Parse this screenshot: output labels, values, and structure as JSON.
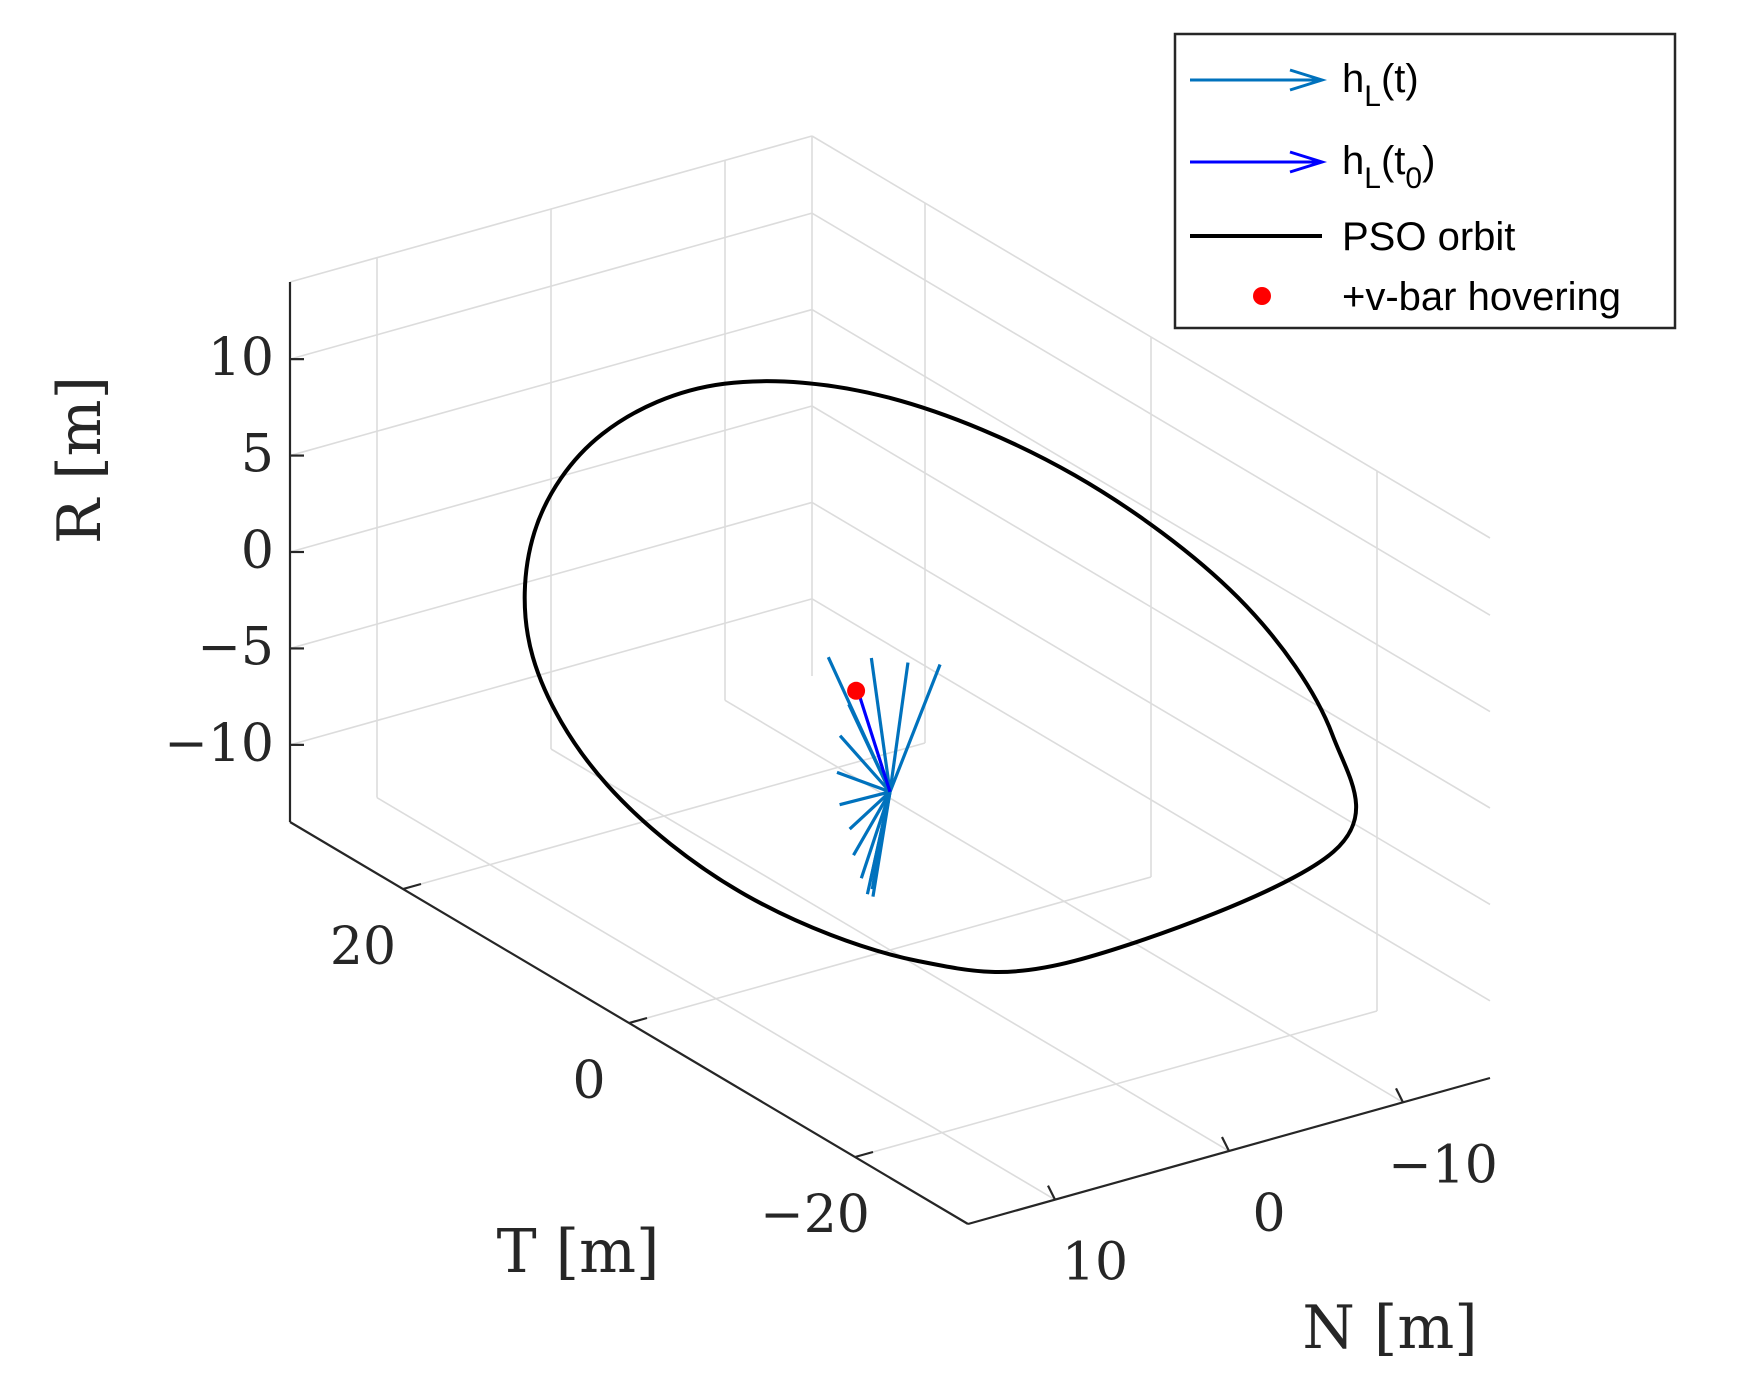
{
  "chart_data": {
    "type": "line3d",
    "title": "",
    "axes": {
      "R": {
        "label": "R [m]",
        "range": [
          -14,
          14
        ],
        "ticks": [
          10,
          5,
          0,
          -5,
          -10
        ],
        "tick_labels": [
          "10",
          "5",
          "0",
          "−5",
          "−10"
        ]
      },
      "T": {
        "label": "T [m]",
        "range": [
          -30,
          30
        ],
        "ticks": [
          20,
          0,
          -20
        ],
        "tick_labels": [
          "20",
          "0",
          "−20"
        ]
      },
      "N": {
        "label": "N [m]",
        "range": [
          -15,
          15
        ],
        "ticks": [
          10,
          0,
          -10
        ],
        "tick_labels": [
          "10",
          "0",
          "−10"
        ]
      }
    },
    "grid": true,
    "legend": {
      "position": "top-right",
      "entries": [
        {
          "main": "h",
          "sub": "L",
          "tail": "(t)",
          "kind": "arrow",
          "color": "#0072BD"
        },
        {
          "main": "h",
          "sub": "L",
          "tail": "(t",
          "sub2": "0",
          "tail2": ")",
          "kind": "arrow",
          "color": "#0000FF"
        },
        {
          "main": "PSO orbit",
          "kind": "line",
          "color": "#000000"
        },
        {
          "main": "+v-bar hovering",
          "kind": "dot",
          "color": "#FF0000"
        }
      ]
    },
    "series": [
      {
        "name": "PSO orbit",
        "color": "#000000",
        "description": "closed elliptical relative orbit (R,T,N in m), sampled",
        "points": [
          [
            0,
            -30,
            -6
          ],
          [
            4.0,
            -25.9,
            -8.6
          ],
          [
            7.1,
            -15.4,
            -10.0
          ],
          [
            8.5,
            -1.1,
            -9.9
          ],
          [
            8.0,
            13.0,
            -8.4
          ],
          [
            5.7,
            23.6,
            -5.8
          ],
          [
            2.1,
            29.0,
            -2.3
          ],
          [
            -2.0,
            29.0,
            1.6
          ],
          [
            -5.7,
            23.6,
            5.2
          ],
          [
            -8.0,
            13.0,
            7.8
          ],
          [
            -8.5,
            -1.1,
            9.0
          ],
          [
            -7.1,
            -15.4,
            8.4
          ],
          [
            -4.0,
            -25.9,
            6.2
          ],
          [
            0,
            -30,
            -6
          ]
        ]
      },
      {
        "name": "+v-bar hovering",
        "color": "#FF0000",
        "points": [
          [
            -1.6,
            3.0,
            0
          ]
        ]
      },
      {
        "name": "hL(t0)",
        "color": "#0000FF",
        "origin": [
          -5.8,
          0,
          0
        ],
        "vectors": [
          [
            -3.0,
            6.0,
            -2.0
          ]
        ]
      },
      {
        "name": "hL(t)",
        "color": "#0072BD",
        "origin": [
          -5.8,
          0,
          0
        ],
        "vectors": [
          [
            -1.5,
            7.0,
            -1.0
          ],
          [
            -1.4,
            5.5,
            -2.5
          ],
          [
            -1.3,
            3.8,
            -3.5
          ],
          [
            -1.2,
            2.5,
            -4.5
          ],
          [
            -4.5,
            7.5,
            -2.5
          ],
          [
            -6.0,
            7.5,
            -2.0
          ],
          [
            -7.6,
            7.0,
            -1.5
          ],
          [
            -8.8,
            6.0,
            -1.0
          ],
          [
            -9.6,
            4.8,
            -0.8
          ],
          [
            -10.6,
            4.0,
            -0.5
          ],
          [
            -11.4,
            3.0,
            -0.3
          ],
          [
            -11.8,
            2.0,
            0.0
          ],
          [
            -11.6,
            1.2,
            0.2
          ],
          [
            -11.0,
            0.8,
            0.5
          ],
          [
            -10.4,
            0.5,
            0.8
          ]
        ]
      }
    ]
  }
}
